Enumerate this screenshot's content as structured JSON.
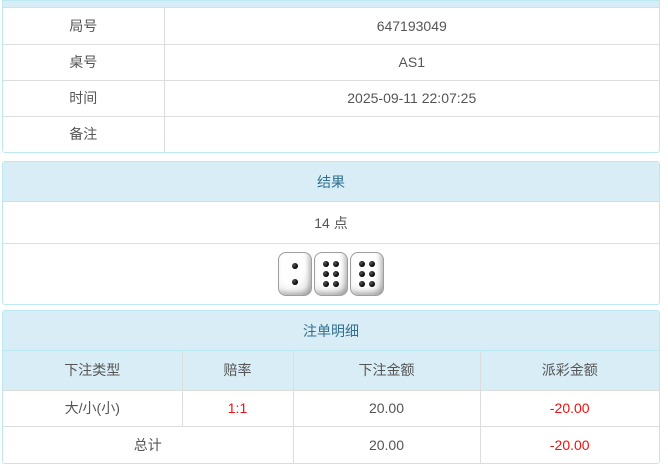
{
  "colors": {
    "panel_border": "#bce8f1",
    "heading_bg": "#d9edf7",
    "heading_text": "#31708f",
    "row_divider": "#dddddd",
    "body_text": "#555555",
    "negative_text": "#ee1111"
  },
  "round_info": {
    "rows": [
      {
        "label": "局号",
        "value": "647193049"
      },
      {
        "label": "桌号",
        "value": "AS1"
      },
      {
        "label": "时间",
        "value": "2025-09-11 22:07:25"
      },
      {
        "label": "备注",
        "value": ""
      }
    ]
  },
  "result": {
    "title": "结果",
    "points": "14 点",
    "dice": [
      2,
      6,
      6
    ]
  },
  "bets": {
    "title": "注单明细",
    "columns": [
      "下注类型",
      "赔率",
      "下注金额",
      "派彩金额"
    ],
    "rows": [
      {
        "type": "大/小(小)",
        "odds": "1:1",
        "bet": "20.00",
        "payout": "-20.00"
      }
    ],
    "total": {
      "label": "总计",
      "bet": "20.00",
      "payout": "-20.00"
    }
  }
}
